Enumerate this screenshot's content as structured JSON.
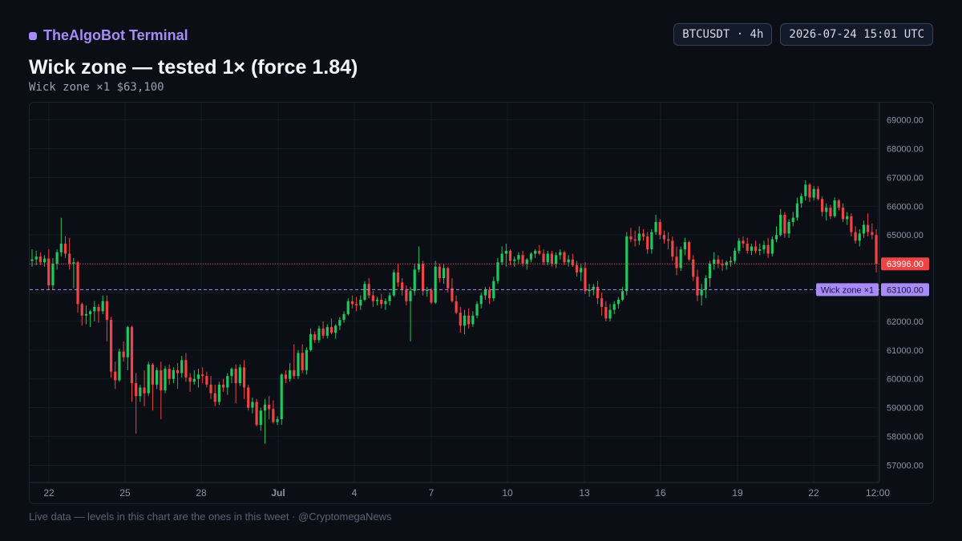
{
  "header": {
    "brand": "TheAlgoBot Terminal",
    "symbol_badge": "BTCUSDT · 4h",
    "time_badge": "2026-07-24 15:01 UTC"
  },
  "title": "Wick zone — tested 1× (force 1.84)",
  "subtitle": "Wick zone ×1 $63,100",
  "footer": "Live data — levels in this chart are the ones in this tweet · @CryptomegaNews",
  "colors": {
    "up": "#22c55e",
    "down": "#ef4444",
    "accent": "#a78bfa",
    "grid": "#161c28",
    "axis_text": "#8b93a5"
  },
  "chart_data": {
    "type": "candlestick",
    "interval": "4h",
    "ylim": [
      56400,
      69600
    ],
    "y_ticks": [
      "69000.00",
      "68000.00",
      "67000.00",
      "66000.00",
      "65000.00",
      "64000.00",
      "63000.00",
      "62000.00",
      "61000.00",
      "60000.00",
      "59000.00",
      "58000.00",
      "57000.00"
    ],
    "x_ticks": [
      "22",
      "25",
      "28",
      "Jul",
      "4",
      "7",
      "10",
      "13",
      "16",
      "19",
      "22",
      "12:00"
    ],
    "last_price": {
      "value": 63996,
      "label": "63996.00"
    },
    "zone": {
      "value": 63100,
      "label": "63100.00",
      "tag": "Wick zone ×1"
    },
    "ohlc_note": "open, high, low, close per 4h candle",
    "ohlc": [
      [
        64100,
        64500,
        63900,
        64150
      ],
      [
        64150,
        64450,
        63950,
        64250
      ],
      [
        64250,
        64400,
        63950,
        64050
      ],
      [
        64050,
        64300,
        63900,
        64180
      ],
      [
        64180,
        64500,
        63100,
        63250
      ],
      [
        63250,
        64200,
        63100,
        64000
      ],
      [
        64000,
        64500,
        63800,
        64400
      ],
      [
        64400,
        65600,
        64250,
        64700
      ],
      [
        64700,
        64950,
        64200,
        64350
      ],
      [
        64350,
        64900,
        63800,
        64000
      ],
      [
        64000,
        64200,
        63150,
        64050
      ],
      [
        64050,
        64100,
        62300,
        62600
      ],
      [
        62600,
        62650,
        61850,
        62200
      ],
      [
        62200,
        62550,
        61900,
        62250
      ],
      [
        62250,
        62400,
        61800,
        62350
      ],
      [
        62350,
        62700,
        62000,
        62500
      ],
      [
        62500,
        62600,
        61950,
        62350
      ],
      [
        62350,
        62900,
        62250,
        62700
      ],
      [
        62700,
        62900,
        61300,
        62050
      ],
      [
        62050,
        62150,
        60050,
        60250
      ],
      [
        60250,
        60600,
        59650,
        59950
      ],
      [
        59950,
        61050,
        59900,
        60950
      ],
      [
        60950,
        61300,
        60600,
        60750
      ],
      [
        60750,
        61850,
        60300,
        61800
      ],
      [
        61800,
        61850,
        59200,
        59850
      ],
      [
        59850,
        60200,
        58100,
        59400
      ],
      [
        59400,
        59800,
        59200,
        59700
      ],
      [
        59700,
        60300,
        59050,
        59500
      ],
      [
        59500,
        60600,
        59400,
        60500
      ],
      [
        60500,
        60550,
        58900,
        59800
      ],
      [
        59800,
        60400,
        59650,
        60300
      ],
      [
        60300,
        60600,
        58600,
        59600
      ],
      [
        59600,
        60450,
        59500,
        60350
      ],
      [
        60350,
        60500,
        59800,
        60000
      ],
      [
        60000,
        60400,
        59850,
        60300
      ],
      [
        60300,
        60550,
        59650,
        60200
      ],
      [
        60200,
        60800,
        60050,
        60650
      ],
      [
        60650,
        60900,
        59900,
        60050
      ],
      [
        60050,
        60200,
        59550,
        59900
      ],
      [
        59900,
        60300,
        59800,
        60000
      ],
      [
        60000,
        60350,
        59700,
        60150
      ],
      [
        60150,
        60400,
        59850,
        60100
      ],
      [
        60100,
        60250,
        59700,
        59800
      ],
      [
        59800,
        60100,
        59300,
        59500
      ],
      [
        59500,
        59800,
        59050,
        59200
      ],
      [
        59200,
        59900,
        59100,
        59800
      ],
      [
        59800,
        60000,
        59550,
        59700
      ],
      [
        59700,
        60200,
        59450,
        60100
      ],
      [
        60100,
        60400,
        59850,
        60350
      ],
      [
        60350,
        60500,
        59150,
        59850
      ],
      [
        59850,
        60500,
        59750,
        60400
      ],
      [
        60400,
        60650,
        59300,
        59700
      ],
      [
        59700,
        59800,
        58900,
        59000
      ],
      [
        59000,
        59350,
        58800,
        59200
      ],
      [
        59200,
        59300,
        58350,
        58400
      ],
      [
        58400,
        59000,
        58200,
        58900
      ],
      [
        58900,
        59300,
        57750,
        59100
      ],
      [
        59100,
        59400,
        58600,
        58950
      ],
      [
        58950,
        59250,
        58450,
        58500
      ],
      [
        58500,
        58700,
        58400,
        58600
      ],
      [
        58600,
        60200,
        58400,
        60150
      ],
      [
        60150,
        60300,
        59850,
        60000
      ],
      [
        60000,
        60550,
        59900,
        60300
      ],
      [
        60300,
        61200,
        60000,
        60100
      ],
      [
        60100,
        61000,
        60000,
        60900
      ],
      [
        60900,
        61200,
        60200,
        60300
      ],
      [
        60300,
        61100,
        60150,
        61000
      ],
      [
        61000,
        61750,
        60950,
        61550
      ],
      [
        61550,
        61650,
        61250,
        61350
      ],
      [
        61350,
        61850,
        61250,
        61750
      ],
      [
        61750,
        62000,
        61400,
        61500
      ],
      [
        61500,
        61900,
        61400,
        61800
      ],
      [
        61800,
        62100,
        61550,
        61600
      ],
      [
        61600,
        61900,
        61400,
        61850
      ],
      [
        61850,
        62150,
        61700,
        62050
      ],
      [
        62050,
        62350,
        61950,
        62250
      ],
      [
        62250,
        62800,
        62200,
        62700
      ],
      [
        62700,
        62900,
        62450,
        62600
      ],
      [
        62600,
        62850,
        62350,
        62550
      ],
      [
        62550,
        62900,
        62400,
        62750
      ],
      [
        62750,
        63400,
        62700,
        63300
      ],
      [
        63300,
        63500,
        62800,
        62900
      ],
      [
        62900,
        63050,
        62500,
        62700
      ],
      [
        62700,
        62850,
        62550,
        62750
      ],
      [
        62750,
        62950,
        62450,
        62600
      ],
      [
        62600,
        62800,
        62400,
        62700
      ],
      [
        62700,
        63000,
        62550,
        62900
      ],
      [
        62900,
        63800,
        62850,
        63700
      ],
      [
        63700,
        64000,
        63200,
        63350
      ],
      [
        63350,
        63500,
        62900,
        63100
      ],
      [
        63100,
        63250,
        62550,
        62700
      ],
      [
        62700,
        63200,
        61300,
        63050
      ],
      [
        63050,
        64000,
        62900,
        63800
      ],
      [
        63800,
        64600,
        63700,
        64000
      ],
      [
        64000,
        64100,
        62900,
        63050
      ],
      [
        63050,
        63200,
        62850,
        63100
      ],
      [
        63100,
        63150,
        62600,
        62650
      ],
      [
        62650,
        64100,
        62600,
        63900
      ],
      [
        63900,
        64000,
        63350,
        63500
      ],
      [
        63500,
        64000,
        63300,
        63850
      ],
      [
        63850,
        63900,
        63000,
        63150
      ],
      [
        63150,
        63500,
        62650,
        62700
      ],
      [
        62700,
        62900,
        62250,
        62300
      ],
      [
        62300,
        62500,
        61600,
        61850
      ],
      [
        61850,
        62400,
        61550,
        62200
      ],
      [
        62200,
        62450,
        61750,
        61900
      ],
      [
        61900,
        62350,
        61800,
        62200
      ],
      [
        62200,
        62700,
        62100,
        62600
      ],
      [
        62600,
        63000,
        62450,
        62900
      ],
      [
        62900,
        63200,
        62750,
        63100
      ],
      [
        63100,
        63200,
        62600,
        62800
      ],
      [
        62800,
        63550,
        62700,
        63400
      ],
      [
        63400,
        64200,
        63300,
        64050
      ],
      [
        64050,
        64600,
        63950,
        64350
      ],
      [
        64350,
        64700,
        63900,
        64450
      ],
      [
        64450,
        64500,
        63950,
        64100
      ],
      [
        64100,
        64250,
        63900,
        64150
      ],
      [
        64150,
        64400,
        64000,
        64300
      ],
      [
        64300,
        64450,
        63900,
        64000
      ],
      [
        64000,
        64200,
        63800,
        64150
      ],
      [
        64150,
        64400,
        64050,
        64350
      ],
      [
        64350,
        64500,
        64200,
        64450
      ],
      [
        64450,
        64650,
        64300,
        64350
      ],
      [
        64350,
        64500,
        63950,
        64050
      ],
      [
        64050,
        64450,
        63950,
        64350
      ],
      [
        64350,
        64450,
        63900,
        64000
      ],
      [
        64000,
        64400,
        63850,
        64300
      ],
      [
        64300,
        64500,
        64150,
        64400
      ],
      [
        64400,
        64450,
        63950,
        64050
      ],
      [
        64050,
        64300,
        63900,
        64150
      ],
      [
        64150,
        64350,
        63900,
        63950
      ],
      [
        63950,
        64100,
        63550,
        63700
      ],
      [
        63700,
        64000,
        63400,
        63850
      ],
      [
        63850,
        64050,
        62950,
        63050
      ],
      [
        63050,
        63300,
        62850,
        63100
      ],
      [
        63100,
        63300,
        62900,
        63200
      ],
      [
        63200,
        63400,
        62600,
        62800
      ],
      [
        62800,
        63000,
        62200,
        62500
      ],
      [
        62500,
        62700,
        62000,
        62100
      ],
      [
        62100,
        62600,
        62000,
        62400
      ],
      [
        62400,
        62700,
        62250,
        62600
      ],
      [
        62600,
        62850,
        62450,
        62750
      ],
      [
        62750,
        63200,
        62700,
        63050
      ],
      [
        63050,
        65100,
        62900,
        64950
      ],
      [
        64950,
        65250,
        64750,
        64850
      ],
      [
        64850,
        65150,
        64600,
        64800
      ],
      [
        64800,
        65300,
        64650,
        65050
      ],
      [
        65050,
        65200,
        64800,
        64950
      ],
      [
        64950,
        65100,
        64350,
        64500
      ],
      [
        64500,
        65200,
        64350,
        65100
      ],
      [
        65100,
        65700,
        65000,
        65450
      ],
      [
        65450,
        65550,
        64850,
        65000
      ],
      [
        65000,
        65150,
        64700,
        64850
      ],
      [
        64850,
        65100,
        64500,
        64800
      ],
      [
        64800,
        64950,
        64100,
        64250
      ],
      [
        64250,
        64600,
        63600,
        63850
      ],
      [
        63850,
        64600,
        63750,
        64500
      ],
      [
        64500,
        64900,
        64300,
        64750
      ],
      [
        64750,
        64800,
        64100,
        64150
      ],
      [
        64150,
        64300,
        63400,
        63550
      ],
      [
        63550,
        63800,
        62700,
        62900
      ],
      [
        62900,
        63300,
        62550,
        63100
      ],
      [
        63100,
        63600,
        62800,
        63500
      ],
      [
        63500,
        64100,
        63200,
        64000
      ],
      [
        64000,
        64400,
        63800,
        64150
      ],
      [
        64150,
        64300,
        63850,
        64000
      ],
      [
        64000,
        64150,
        63750,
        63950
      ],
      [
        63950,
        64100,
        63800,
        64050
      ],
      [
        64050,
        64250,
        63900,
        64100
      ],
      [
        64100,
        64550,
        64000,
        64450
      ],
      [
        64450,
        64900,
        64350,
        64800
      ],
      [
        64800,
        64950,
        64550,
        64700
      ],
      [
        64700,
        64900,
        64350,
        64450
      ],
      [
        64450,
        64700,
        64300,
        64600
      ],
      [
        64600,
        64800,
        64350,
        64450
      ],
      [
        64450,
        64700,
        64300,
        64500
      ],
      [
        64500,
        64800,
        64350,
        64650
      ],
      [
        64650,
        64900,
        64200,
        64350
      ],
      [
        64350,
        64950,
        64250,
        64850
      ],
      [
        64850,
        65300,
        64750,
        65000
      ],
      [
        65000,
        65900,
        64950,
        65700
      ],
      [
        65700,
        65800,
        64900,
        65050
      ],
      [
        65050,
        65550,
        64900,
        65450
      ],
      [
        65450,
        65800,
        65300,
        65600
      ],
      [
        65600,
        66300,
        65500,
        66100
      ],
      [
        66100,
        66450,
        65950,
        66350
      ],
      [
        66350,
        66900,
        66200,
        66750
      ],
      [
        66750,
        66800,
        66150,
        66300
      ],
      [
        66300,
        66700,
        66200,
        66600
      ],
      [
        66600,
        66700,
        66200,
        66250
      ],
      [
        66250,
        66350,
        65650,
        65800
      ],
      [
        65800,
        66100,
        65500,
        65950
      ],
      [
        65950,
        66050,
        65550,
        65650
      ],
      [
        65650,
        66300,
        65600,
        66200
      ],
      [
        66200,
        66250,
        65850,
        65950
      ],
      [
        65950,
        66100,
        65450,
        65550
      ],
      [
        65550,
        65800,
        65350,
        65650
      ],
      [
        65650,
        65750,
        64950,
        65100
      ],
      [
        65100,
        65300,
        64700,
        64800
      ],
      [
        64800,
        65200,
        64600,
        65050
      ],
      [
        65050,
        65500,
        64900,
        65350
      ],
      [
        65350,
        65750,
        64950,
        65100
      ],
      [
        65100,
        65400,
        64850,
        65000
      ],
      [
        65000,
        65200,
        63700,
        63996
      ]
    ]
  }
}
